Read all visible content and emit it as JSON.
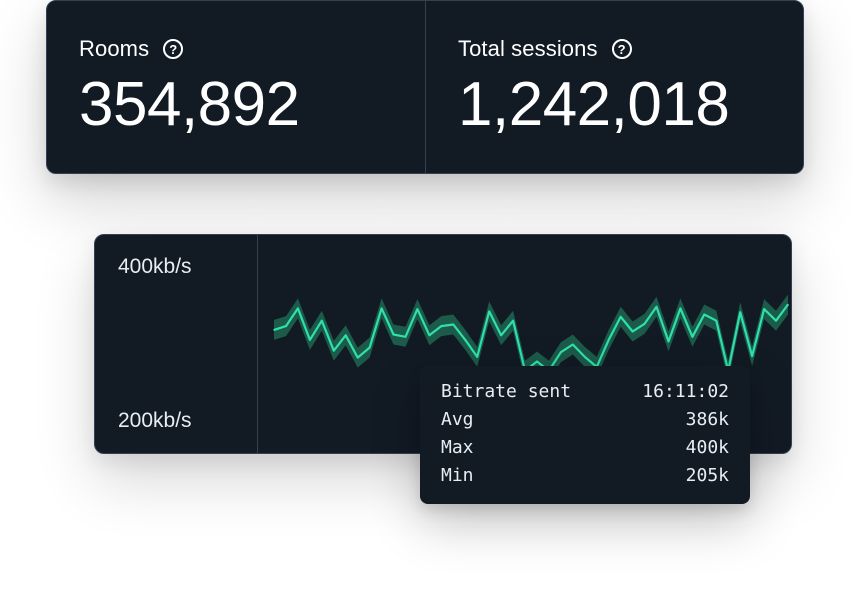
{
  "stats": [
    {
      "label": "Rooms",
      "value": "354,892",
      "help_icon": "question-circle-icon"
    },
    {
      "label": "Total sessions",
      "value": "1,242,018",
      "help_icon": "question-circle-icon"
    }
  ],
  "bitrate_chart": {
    "y_axis_top": "400kb/s",
    "y_axis_bottom": "200kb/s",
    "colors": {
      "line": "#2fe0aa",
      "band": "#1c5a4a",
      "background": "#121a24"
    }
  },
  "chart_data": {
    "type": "area",
    "title": "",
    "ylabel": "",
    "ylim": [
      200,
      400
    ],
    "y_tick_labels": [
      "400kb/s",
      "200kb/s"
    ],
    "series": [
      {
        "values": [
          317,
          322,
          345,
          304,
          329,
          290,
          310,
          281,
          294,
          345,
          311,
          308,
          344,
          310,
          322,
          324,
          304,
          282,
          341,
          310,
          329,
          264,
          276,
          264,
          288,
          298,
          282,
          269,
          304,
          334,
          315,
          325,
          347,
          302,
          345,
          308,
          337,
          329,
          264,
          340,
          283,
          344,
          329,
          350
        ]
      }
    ]
  },
  "tooltip": {
    "title": "Bitrate sent",
    "time": "16:11:02",
    "rows": [
      {
        "label": "Avg",
        "value": "386k"
      },
      {
        "label": "Max",
        "value": "400k"
      },
      {
        "label": "Min",
        "value": "205k"
      }
    ]
  }
}
